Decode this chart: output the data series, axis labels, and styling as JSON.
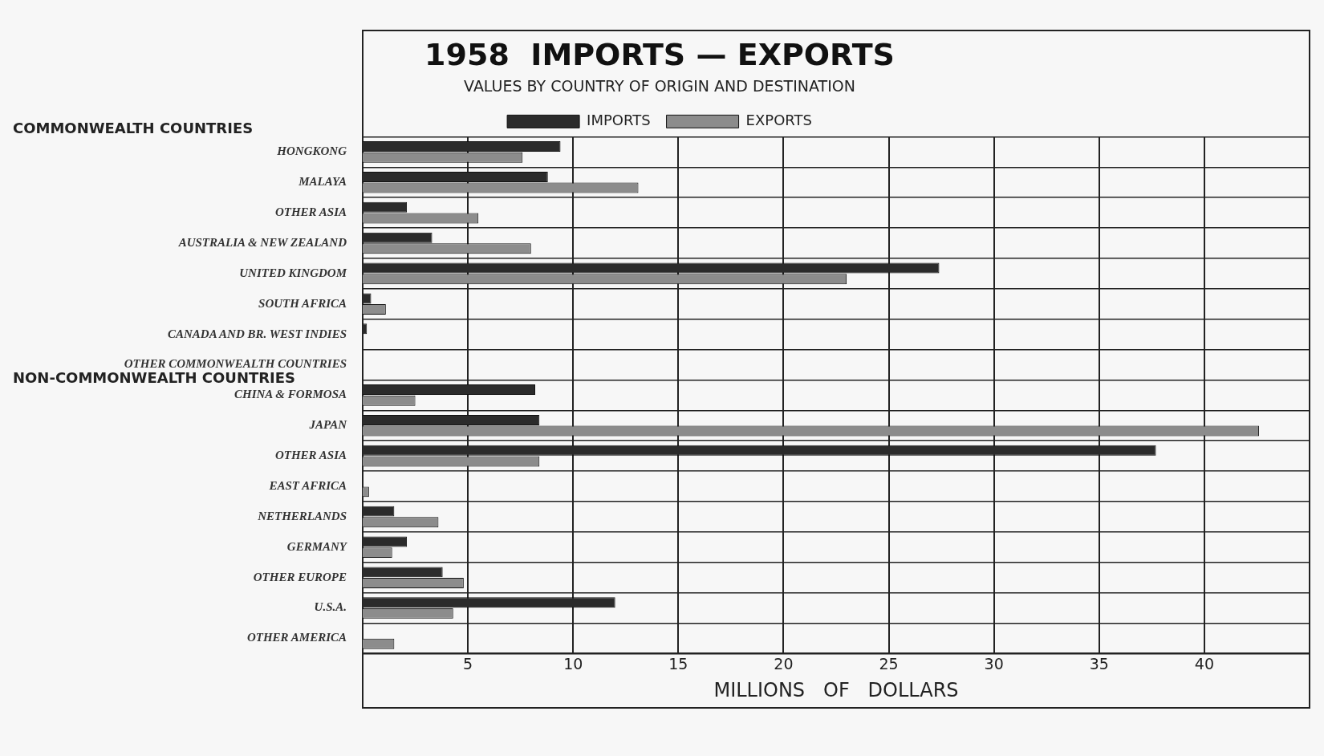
{
  "chart_data": {
    "type": "bar",
    "orientation": "horizontal",
    "title": "1958  IMPORTS — EXPORTS",
    "subtitle": "VALUES BY COUNTRY OF ORIGIN AND DESTINATION",
    "xlabel": "MILLIONS   OF   DOLLARS",
    "categories": [
      "HONGKONG",
      "MALAYA",
      "OTHER ASIA",
      "AUSTRALIA & NEW ZEALAND",
      "UNITED KINGDOM",
      "SOUTH AFRICA",
      "CANADA AND BR. WEST INDIES",
      "OTHER COMMONWEALTH COUNTRIES",
      "CHINA & FORMOSA",
      "JAPAN",
      "OTHER ASIA",
      "EAST AFRICA",
      "NETHERLANDS",
      "GERMANY",
      "OTHER EUROPE",
      "U.S.A.",
      "OTHER AMERICA"
    ],
    "series": [
      {
        "name": "IMPORTS",
        "color": "#2b2b2b",
        "values": [
          9.4,
          8.8,
          2.1,
          3.3,
          27.4,
          0.4,
          0.2,
          null,
          8.2,
          8.4,
          37.7,
          null,
          1.5,
          2.1,
          3.8,
          12.0,
          null
        ]
      },
      {
        "name": "EXPORTS",
        "color": "#8c8c8c",
        "values": [
          7.6,
          13.1,
          5.5,
          8.0,
          23.0,
          1.1,
          null,
          null,
          2.5,
          42.6,
          8.4,
          0.3,
          3.6,
          1.4,
          4.8,
          4.3,
          1.5
        ]
      }
    ],
    "xlim": [
      0,
      45
    ],
    "xticks": [
      5,
      10,
      15,
      20,
      25,
      30,
      35,
      40
    ],
    "grid": true,
    "legend": "top",
    "annotations": [
      "COMMONWEALTH COUNTRIES",
      "NON-COMMONWEALTH COUNTRIES"
    ]
  }
}
